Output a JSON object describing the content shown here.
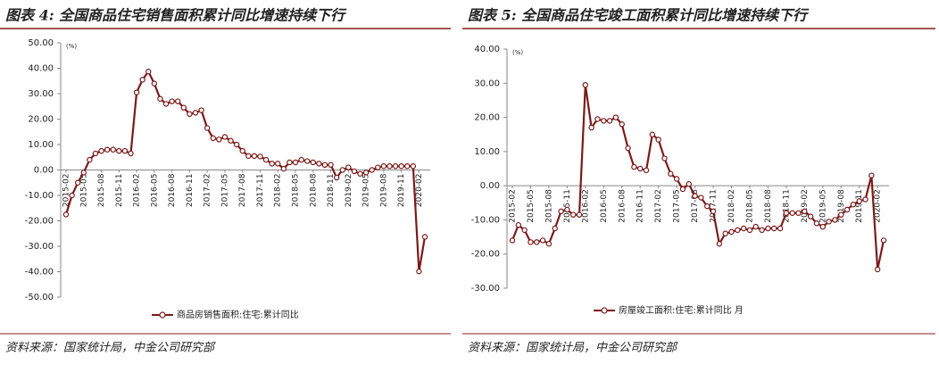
{
  "chart_data": [
    {
      "type": "line",
      "title": "图表 4: 全国商品住宅销售面积累计同比增速持续下行",
      "unit": "(%)",
      "source": "资料来源：国家统计局，中金公司研究部",
      "categories": [
        "2015-02",
        null,
        null,
        "2015-05",
        null,
        null,
        "2015-08",
        null,
        null,
        "2015-11",
        null,
        null,
        "2016-02",
        null,
        null,
        "2016-05",
        null,
        null,
        "2016-08",
        null,
        null,
        "2016-11",
        null,
        null,
        "2017-02",
        null,
        null,
        "2017-05",
        null,
        null,
        "2017-08",
        null,
        null,
        "2017-11",
        null,
        null,
        "2018-02",
        null,
        null,
        "2018-05",
        null,
        null,
        "2018-08",
        null,
        null,
        "2018-11",
        null,
        null,
        "2019-02",
        null,
        null,
        "2019-05",
        null,
        null,
        "2019-08",
        null,
        null,
        "2019-11",
        null,
        null,
        "2020-02",
        null
      ],
      "series": [
        {
          "name": "商品房销售面积:住宅:累计同比",
          "color": "#7b1a1a",
          "values": [
            -17.5,
            -10,
            -5,
            -1,
            4,
            6.5,
            7.5,
            8,
            8,
            7.5,
            7.5,
            6.5,
            30.5,
            35.5,
            38.7,
            34,
            28,
            26,
            27,
            27,
            24.5,
            22,
            22.5,
            23.5,
            16.5,
            12.5,
            12,
            13,
            11.5,
            10,
            7.5,
            5.5,
            5.5,
            5.3,
            4,
            2.5,
            2.5,
            0.5,
            3,
            3,
            4,
            3.5,
            3,
            2.5,
            2,
            2,
            -3,
            0,
            1,
            -0.5,
            -1.5,
            -1,
            0,
            1,
            1.5,
            1.5,
            1.5,
            1.5,
            1.5,
            1.5,
            -39.9,
            -26.3
          ]
        }
      ],
      "ylim": [
        -50,
        50
      ],
      "yticks": [
        {
          "value": -50,
          "label": "-50.00"
        },
        {
          "value": -40,
          "label": "-40.00"
        },
        {
          "value": -30,
          "label": "-30.00"
        },
        {
          "value": -20,
          "label": "-20.00"
        },
        {
          "value": -10,
          "label": "-10.00"
        },
        {
          "value": 0,
          "label": "0.00"
        },
        {
          "value": 10,
          "label": "10.00"
        },
        {
          "value": 20,
          "label": "20.00"
        },
        {
          "value": 30,
          "label": "30.00"
        },
        {
          "value": 40,
          "label": "40.00"
        },
        {
          "value": 50,
          "label": "50.00"
        }
      ],
      "legend": "bottom"
    },
    {
      "type": "line",
      "title": "图表 5: 全国商品住宅竣工面积累计同比增速持续下行",
      "unit": "(%)",
      "source": "资料来源：国家统计局，中金公司研究部",
      "categories": [
        "2015-02",
        null,
        null,
        "2015-05",
        null,
        null,
        "2015-08",
        null,
        null,
        "2015-11",
        null,
        null,
        "2016-02",
        null,
        null,
        "2016-05",
        null,
        null,
        "2016-08",
        null,
        null,
        "2016-11",
        null,
        null,
        "2017-02",
        null,
        null,
        "2017-05",
        null,
        null,
        "2017-08",
        null,
        null,
        "2017-11",
        null,
        null,
        "2018-02",
        null,
        null,
        "2018-05",
        null,
        null,
        "2018-08",
        null,
        null,
        "2018-11",
        null,
        null,
        "2019-02",
        null,
        null,
        "2019-05",
        null,
        null,
        "2019-08",
        null,
        null,
        "2019-11",
        null,
        null,
        "2020-02",
        null
      ],
      "series": [
        {
          "name": "房屋竣工面积:住宅:累计同比 月",
          "color": "#7b1a1a",
          "values": [
            -16,
            -11.5,
            -13,
            -16.5,
            -16.5,
            -16,
            -17,
            -12.5,
            -7.5,
            -7,
            -8.5,
            -8.5,
            29.5,
            17,
            19.5,
            19,
            19,
            20,
            18,
            11,
            5.5,
            5,
            4.5,
            15,
            13.5,
            8,
            3.5,
            2,
            -1,
            0.5,
            -3,
            -3.5,
            -6,
            -7.5,
            -17,
            -14,
            -13.5,
            -13,
            -12.5,
            -13,
            -12,
            -13,
            -12.5,
            -12.5,
            -12.5,
            -8,
            -8,
            -8,
            -7.5,
            -9,
            -11,
            -12,
            -10.5,
            -10,
            -8.5,
            -7,
            -5.5,
            -4.5,
            -4,
            3,
            -24.5,
            -16
          ]
        }
      ],
      "ylim": [
        -30,
        40
      ],
      "yticks": [
        {
          "value": -30,
          "label": "-30.00"
        },
        {
          "value": -20,
          "label": "-20.00"
        },
        {
          "value": -10,
          "label": "-10.00"
        },
        {
          "value": 0,
          "label": "0.00"
        },
        {
          "value": 10,
          "label": "10.00"
        },
        {
          "value": 20,
          "label": "20.00"
        },
        {
          "value": 30,
          "label": "30.00"
        },
        {
          "value": 40,
          "label": "40.00"
        }
      ],
      "legend": "bottom"
    }
  ]
}
